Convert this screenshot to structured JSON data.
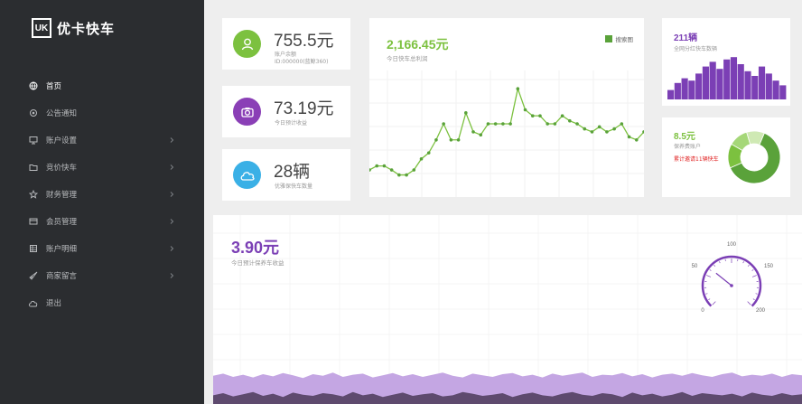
{
  "brand": {
    "logo_mark": "UK",
    "name": "优卡快车"
  },
  "nav": [
    {
      "label": "首页",
      "icon": "globe-icon",
      "active": true,
      "has_submenu": false
    },
    {
      "label": "公告通知",
      "icon": "settings-icon",
      "active": false,
      "has_submenu": false
    },
    {
      "label": "账户设置",
      "icon": "monitor-icon",
      "active": false,
      "has_submenu": true
    },
    {
      "label": "竞价快车",
      "icon": "folder-icon",
      "active": false,
      "has_submenu": true
    },
    {
      "label": "财务管理",
      "icon": "star-icon",
      "active": false,
      "has_submenu": true
    },
    {
      "label": "会员管理",
      "icon": "card-icon",
      "active": false,
      "has_submenu": true
    },
    {
      "label": "账户明细",
      "icon": "grid-icon",
      "active": false,
      "has_submenu": true
    },
    {
      "label": "商家留言",
      "icon": "rocket-icon",
      "active": false,
      "has_submenu": true
    },
    {
      "label": "退出",
      "icon": "cloud-icon",
      "active": false,
      "has_submenu": false
    }
  ],
  "stats": {
    "balance": {
      "value": "755.5元",
      "label": "账户余额",
      "sub": "ID:000000(蓝鲸360)",
      "icon": "user-icon",
      "color": "#7cc13f"
    },
    "daily": {
      "value": "73.19元",
      "label": "今日预计收益",
      "icon": "camera-icon",
      "color": "#8a3fb6"
    },
    "cars": {
      "value": "28辆",
      "label": "优雅保快车数量",
      "icon": "cloud-icon",
      "color": "#3ab0e6"
    }
  },
  "line_card": {
    "value": "2,166.45元",
    "label": "今日快车总利润",
    "legend": "搜索图"
  },
  "bar_card": {
    "value": "211辆",
    "label": "全网分红快车数辆"
  },
  "donut_card": {
    "value": "8.5元",
    "label": "保养费账户",
    "warning": "累计邀请11辆快车"
  },
  "bottom_card": {
    "value": "3.90元",
    "label": "今日预计保养车收益"
  },
  "gauge": {
    "ticks": [
      "0",
      "50",
      "100",
      "150",
      "200"
    ],
    "value": 62
  },
  "colors": {
    "green": "#7cc13f",
    "purple": "#7b3fb5",
    "blue": "#3ab0e6",
    "red": "#e02020",
    "sidebar": "#2b2d30"
  },
  "chart_data": [
    {
      "type": "line",
      "x": [
        1,
        2,
        3,
        4,
        5,
        6,
        7,
        8,
        9,
        10,
        11,
        12,
        13,
        14,
        15,
        16,
        17,
        18,
        19,
        20,
        21,
        22,
        23,
        24,
        25,
        26,
        27,
        28,
        29,
        30,
        31,
        32,
        33,
        34,
        35,
        36,
        37,
        38
      ],
      "series": [
        {
          "name": "搜索图",
          "values": [
            18,
            22,
            22,
            18,
            13,
            13,
            18,
            29,
            35,
            48,
            64,
            48,
            48,
            75,
            56,
            53,
            64,
            64,
            64,
            64,
            99,
            78,
            72,
            72,
            64,
            64,
            72,
            67,
            64,
            59,
            56,
            61,
            56,
            59,
            64,
            51,
            48,
            56
          ]
        }
      ],
      "ylim": [
        0,
        110
      ]
    },
    {
      "type": "bar",
      "values": [
        20,
        35,
        45,
        40,
        55,
        70,
        80,
        65,
        85,
        90,
        75,
        60,
        50,
        70,
        55,
        40,
        30
      ],
      "ylim": [
        0,
        100
      ]
    },
    {
      "type": "pie",
      "values": [
        62,
        15,
        12,
        11
      ],
      "colors": [
        "#5aa23a",
        "#7cc13f",
        "#a5d778",
        "#cfe9b4"
      ]
    },
    {
      "type": "area",
      "series": [
        {
          "name": "",
          "values": [
            52,
            56,
            50,
            54,
            49,
            55,
            51,
            57,
            53,
            48,
            55,
            52,
            58,
            50,
            54,
            56,
            49,
            53,
            57,
            51,
            55,
            50,
            54,
            58,
            52,
            49,
            56,
            53,
            50,
            55,
            57,
            51,
            54,
            49,
            56,
            52,
            55,
            58,
            50,
            54,
            53,
            57,
            51,
            55,
            49,
            54,
            56,
            52,
            57,
            53,
            50,
            55,
            58,
            51,
            54,
            52,
            56,
            50,
            55,
            53
          ]
        },
        {
          "name": "",
          "values": [
            16,
            20,
            14,
            18,
            22,
            15,
            19,
            13,
            21,
            17,
            15,
            20,
            18,
            14,
            22,
            16,
            19,
            13,
            17,
            21,
            15,
            18,
            20,
            14,
            16,
            22,
            19,
            15,
            17,
            20,
            13,
            18,
            21,
            16,
            14,
            19,
            22,
            17,
            15,
            20,
            18,
            13,
            21,
            16,
            19,
            14,
            17,
            22,
            15,
            20,
            18,
            16,
            19,
            14,
            21,
            17,
            15,
            20,
            16,
            18
          ]
        }
      ],
      "ylim": [
        0,
        100
      ]
    }
  ]
}
